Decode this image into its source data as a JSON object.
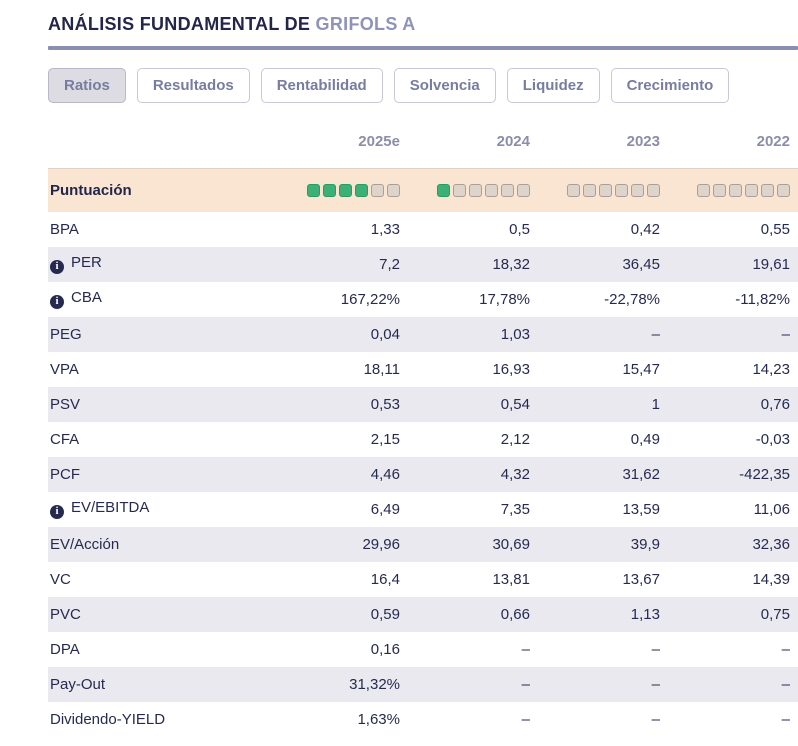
{
  "header": {
    "title": "ANÁLISIS FUNDAMENTAL DE",
    "company": "GRIFOLS A"
  },
  "tabs": [
    {
      "label": "Ratios",
      "active": true
    },
    {
      "label": "Resultados",
      "active": false
    },
    {
      "label": "Rentabilidad",
      "active": false
    },
    {
      "label": "Solvencia",
      "active": false
    },
    {
      "label": "Liquidez",
      "active": false
    },
    {
      "label": "Crecimiento",
      "active": false
    }
  ],
  "table": {
    "year_columns": [
      "2025e",
      "2024",
      "2023",
      "2022"
    ],
    "score_row": {
      "label": "Puntuación",
      "scores": [
        {
          "filled": 4,
          "total": 6
        },
        {
          "filled": 1,
          "total": 6
        },
        {
          "filled": 0,
          "total": 6
        },
        {
          "filled": 0,
          "total": 6
        }
      ]
    },
    "rows": [
      {
        "label": "BPA",
        "info": false,
        "values": [
          "1,33",
          "0,5",
          "0,42",
          "0,55"
        ]
      },
      {
        "label": "PER",
        "info": true,
        "values": [
          "7,2",
          "18,32",
          "36,45",
          "19,61"
        ]
      },
      {
        "label": "CBA",
        "info": true,
        "values": [
          "167,22%",
          "17,78%",
          "-22,78%",
          "-11,82%"
        ]
      },
      {
        "label": "PEG",
        "info": false,
        "values": [
          "0,04",
          "1,03",
          "–",
          "–"
        ]
      },
      {
        "label": "VPA",
        "info": false,
        "values": [
          "18,11",
          "16,93",
          "15,47",
          "14,23"
        ]
      },
      {
        "label": "PSV",
        "info": false,
        "values": [
          "0,53",
          "0,54",
          "1",
          "0,76"
        ]
      },
      {
        "label": "CFA",
        "info": false,
        "values": [
          "2,15",
          "2,12",
          "0,49",
          "-0,03"
        ]
      },
      {
        "label": "PCF",
        "info": false,
        "values": [
          "4,46",
          "4,32",
          "31,62",
          "-422,35"
        ]
      },
      {
        "label": "EV/EBITDA",
        "info": true,
        "values": [
          "6,49",
          "7,35",
          "13,59",
          "11,06"
        ]
      },
      {
        "label": "EV/Acción",
        "info": false,
        "values": [
          "29,96",
          "30,69",
          "39,9",
          "32,36"
        ]
      },
      {
        "label": "VC",
        "info": false,
        "values": [
          "16,4",
          "13,81",
          "13,67",
          "14,39"
        ]
      },
      {
        "label": "PVC",
        "info": false,
        "values": [
          "0,59",
          "0,66",
          "1,13",
          "0,75"
        ]
      },
      {
        "label": "DPA",
        "info": false,
        "values": [
          "0,16",
          "–",
          "–",
          "–"
        ]
      },
      {
        "label": "Pay-Out",
        "info": false,
        "values": [
          "31,32%",
          "–",
          "–",
          "–"
        ]
      },
      {
        "label": "Dividendo-YIELD",
        "info": false,
        "values": [
          "1,63%",
          "–",
          "–",
          "–"
        ]
      }
    ]
  },
  "colors": {
    "accent_divider": "#8b8db5",
    "score_green": "#3cb177",
    "score_green_border": "#2b9b62",
    "score_empty": "#ded4ca",
    "score_empty_border": "#a89f96",
    "score_row_bg": "#fae5d2",
    "row_alt_bg": "#e9e9ef",
    "text_primary": "#262a4f",
    "text_muted": "#8b8ea9"
  }
}
